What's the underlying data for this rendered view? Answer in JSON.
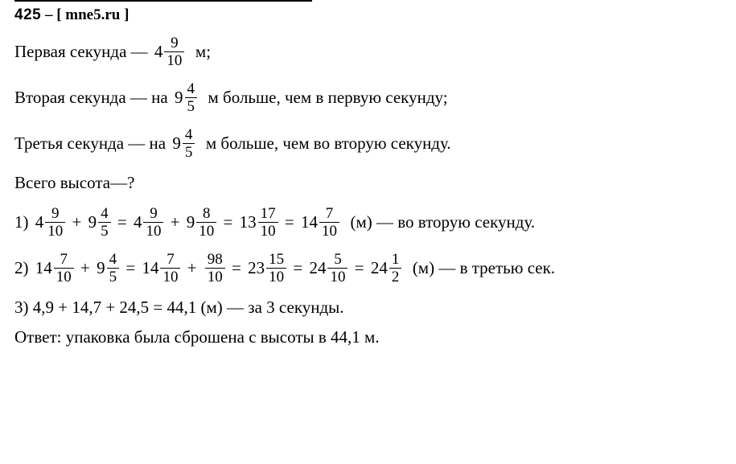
{
  "header": {
    "number": "425",
    "dash": " – ",
    "site": "[ mne5.ru ]"
  },
  "line1": {
    "t1": "Первая секунда — ",
    "f1_w": "4",
    "f1_n": "9",
    "f1_d": "10",
    "t2": "  м;"
  },
  "line2": {
    "t1": "Вторая секунда — на ",
    "f1_w": "9",
    "f1_n": "4",
    "f1_d": "5",
    "t2": "  м больше, чем в первую секунду;"
  },
  "line3": {
    "t1": "Третья секунда — на ",
    "f1_w": "9",
    "f1_n": "4",
    "f1_d": "5",
    "t2": "  м больше, чем во вторую секунду."
  },
  "line4": {
    "t1": "Всего высота—?"
  },
  "step1": {
    "t1": "1) ",
    "a_w": "4",
    "a_n": "9",
    "a_d": "10",
    "t2": " + ",
    "b_w": "9",
    "b_n": "4",
    "b_d": "5",
    "t3": " = ",
    "c_w": "4",
    "c_n": "9",
    "c_d": "10",
    "t4": " + ",
    "d_w": "9",
    "d_n": "8",
    "d_d": "10",
    "t5": " = ",
    "e_w": "13",
    "e_n": "17",
    "e_d": "10",
    "t6": " = ",
    "f_w": "14",
    "f_n": "7",
    "f_d": "10",
    "t7": "  (м) — во вторую секунду."
  },
  "step2": {
    "t1": "2) ",
    "a_w": "14",
    "a_n": "7",
    "a_d": "10",
    "t2": " + ",
    "b_w": "9",
    "b_n": "4",
    "b_d": "5",
    "t3": " = ",
    "c_w": "14",
    "c_n": "7",
    "c_d": "10",
    "t4": " + ",
    "d_w": "",
    "d_n": "98",
    "d_d": "10",
    "t5": " = ",
    "e_w": "23",
    "e_n": "15",
    "e_d": "10",
    "t6": " = ",
    "f_w": "24",
    "f_n": "5",
    "f_d": "10",
    "t7": " = ",
    "g_w": "24",
    "g_n": "1",
    "g_d": "2",
    "t8": "  (м) — в третью сек."
  },
  "step3": {
    "t1": "3) 4,9 + 14,7 + 24,5 = 44,1 (м) — за 3 секунды."
  },
  "answer": {
    "t1": "Ответ: упаковка была сброшена с высоты в 44,1 м."
  }
}
